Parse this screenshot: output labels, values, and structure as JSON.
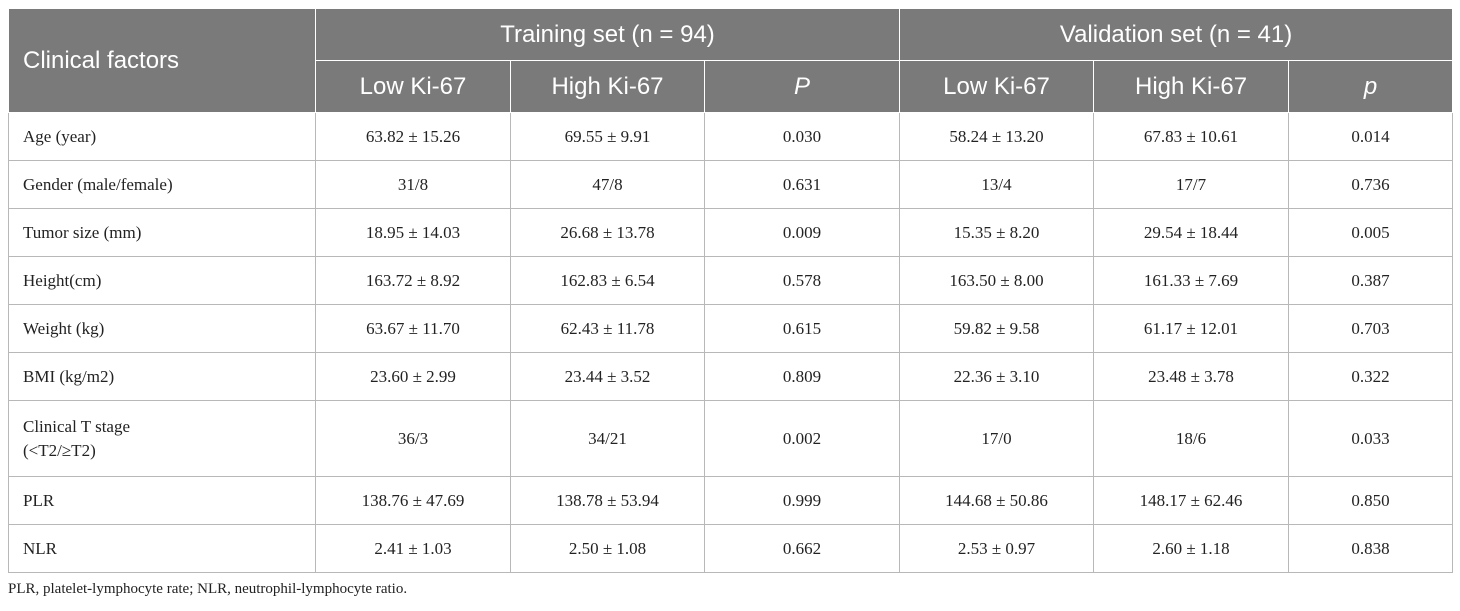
{
  "table": {
    "header": {
      "clinical_factors": "Clinical factors",
      "training_set": "Training set (n = 94)",
      "validation_set": "Validation set (n = 41)",
      "training_cols": [
        "Low Ki-67",
        "High Ki-67",
        "P"
      ],
      "validation_cols": [
        "Low Ki-67",
        "High Ki-67",
        "p"
      ]
    },
    "rows": [
      {
        "label": [
          "Age (year)"
        ],
        "values": [
          "63.82 ± 15.26",
          "69.55 ± 9.91",
          "0.030",
          "58.24 ± 13.20",
          "67.83 ± 10.61",
          "0.014"
        ]
      },
      {
        "label": [
          "Gender (male/female)"
        ],
        "values": [
          "31/8",
          "47/8",
          "0.631",
          "13/4",
          "17/7",
          "0.736"
        ]
      },
      {
        "label": [
          "Tumor size (mm)"
        ],
        "values": [
          "18.95 ± 14.03",
          "26.68 ± 13.78",
          "0.009",
          "15.35 ± 8.20",
          "29.54 ± 18.44",
          "0.005"
        ]
      },
      {
        "label": [
          "Height(cm)"
        ],
        "values": [
          "163.72 ± 8.92",
          "162.83 ± 6.54",
          "0.578",
          "163.50 ± 8.00",
          "161.33 ± 7.69",
          "0.387"
        ]
      },
      {
        "label": [
          "Weight (kg)"
        ],
        "values": [
          "63.67 ± 11.70",
          "62.43 ± 11.78",
          "0.615",
          "59.82 ± 9.58",
          "61.17 ± 12.01",
          "0.703"
        ]
      },
      {
        "label": [
          "BMI (kg/m2)"
        ],
        "values": [
          "23.60 ± 2.99",
          "23.44 ± 3.52",
          "0.809",
          "22.36 ± 3.10",
          "23.48 ± 3.78",
          "0.322"
        ]
      },
      {
        "label": [
          "Clinical T stage",
          "(<T2/≥T2)"
        ],
        "values": [
          "36/3",
          "34/21",
          "0.002",
          "17/0",
          "18/6",
          "0.033"
        ]
      },
      {
        "label": [
          "PLR"
        ],
        "values": [
          "138.76 ± 47.69",
          "138.78 ± 53.94",
          "0.999",
          "144.68 ± 50.86",
          "148.17 ± 62.46",
          "0.850"
        ]
      },
      {
        "label": [
          "NLR"
        ],
        "values": [
          "2.41 ± 1.03",
          "2.50 ± 1.08",
          "0.662",
          "2.53 ± 0.97",
          "2.60 ± 1.18",
          "0.838"
        ]
      }
    ]
  },
  "footnote": "PLR, platelet-lymphocyte rate; NLR, neutrophil-lymphocyte ratio.",
  "colors": {
    "header_bg": "#7a7a7a",
    "header_text": "#ffffff",
    "grid": "#b8b8b8"
  }
}
